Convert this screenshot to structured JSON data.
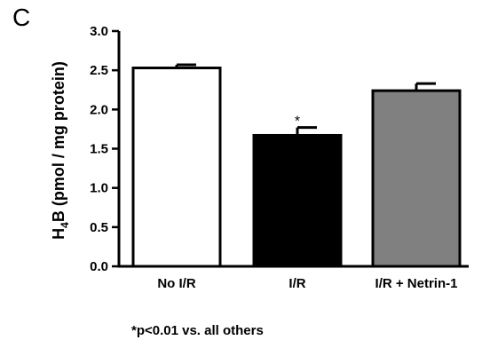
{
  "panel_letter": "C",
  "footnote": "*p<0.01 vs. all others",
  "chart_data": {
    "type": "bar",
    "categories": [
      "No I/R",
      "I/R",
      "I/R + Netrin-1"
    ],
    "values": [
      2.53,
      1.67,
      2.24
    ],
    "errors": [
      0.04,
      0.1,
      0.09
    ],
    "bar_colors": [
      "#ffffff",
      "#000000",
      "#808080"
    ],
    "significance": [
      "",
      "*",
      ""
    ],
    "ylabel_parts": [
      "H",
      "4",
      "B (pmol / mg protein)"
    ],
    "ylim": [
      0,
      3.0
    ],
    "yticks": [
      "0.0",
      "0.5",
      "1.0",
      "1.5",
      "2.0",
      "2.5",
      "3.0"
    ],
    "grid": false
  }
}
